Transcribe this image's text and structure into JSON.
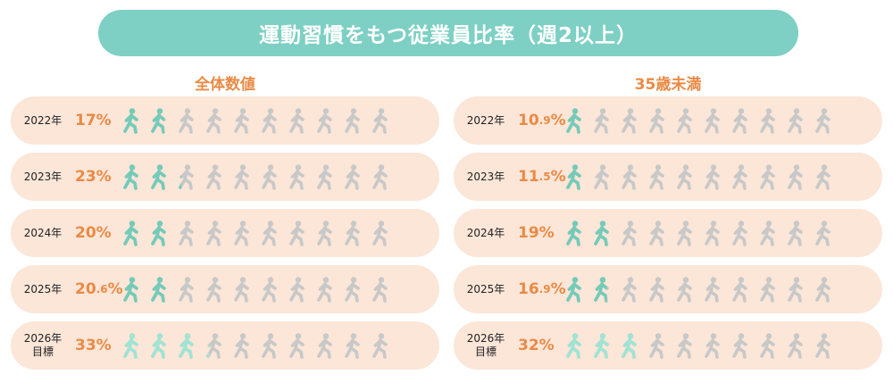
{
  "title": "運動習慣をもつ従業員比率（週2以上）",
  "colors": {
    "accent_teal": "#74cbb8",
    "target_teal": "#9fe4d4",
    "inactive_gray": "#c8c8c8",
    "row_bg": "#fbe6d8",
    "title_bg": "#7dd0c3",
    "pct_orange": "#ea8a45"
  },
  "icon_name": "walking-person-icon",
  "icons_per_row": 10,
  "chart_data": [
    {
      "type": "pictograph",
      "title": "全体数値",
      "unit": "%",
      "categories": [
        "2022年",
        "2023年",
        "2024年",
        "2025年",
        "2026年目標"
      ],
      "rows": [
        {
          "year": "2022年",
          "year_line2": "",
          "pct_int": "17",
          "pct_dec": "",
          "value": 17,
          "target": false
        },
        {
          "year": "2023年",
          "year_line2": "",
          "pct_int": "23",
          "pct_dec": "",
          "value": 23,
          "target": false
        },
        {
          "year": "2024年",
          "year_line2": "",
          "pct_int": "20",
          "pct_dec": "",
          "value": 20,
          "target": false
        },
        {
          "year": "2025年",
          "year_line2": "",
          "pct_int": "20",
          "pct_dec": ".6",
          "value": 20.6,
          "target": false
        },
        {
          "year": "2026年",
          "year_line2": "目標",
          "pct_int": "33",
          "pct_dec": "",
          "value": 33,
          "target": true
        }
      ]
    },
    {
      "type": "pictograph",
      "title": "35歳未満",
      "unit": "%",
      "categories": [
        "2022年",
        "2023年",
        "2024年",
        "2025年",
        "2026年目標"
      ],
      "rows": [
        {
          "year": "2022年",
          "year_line2": "",
          "pct_int": "10",
          "pct_dec": ".9",
          "value": 10.9,
          "target": false
        },
        {
          "year": "2023年",
          "year_line2": "",
          "pct_int": "11",
          "pct_dec": ".5",
          "value": 11.5,
          "target": false
        },
        {
          "year": "2024年",
          "year_line2": "",
          "pct_int": "19",
          "pct_dec": "",
          "value": 19,
          "target": false
        },
        {
          "year": "2025年",
          "year_line2": "",
          "pct_int": "16",
          "pct_dec": ".9",
          "value": 16.9,
          "target": false
        },
        {
          "year": "2026年",
          "year_line2": "目標",
          "pct_int": "32",
          "pct_dec": "",
          "value": 32,
          "target": true
        }
      ]
    }
  ]
}
